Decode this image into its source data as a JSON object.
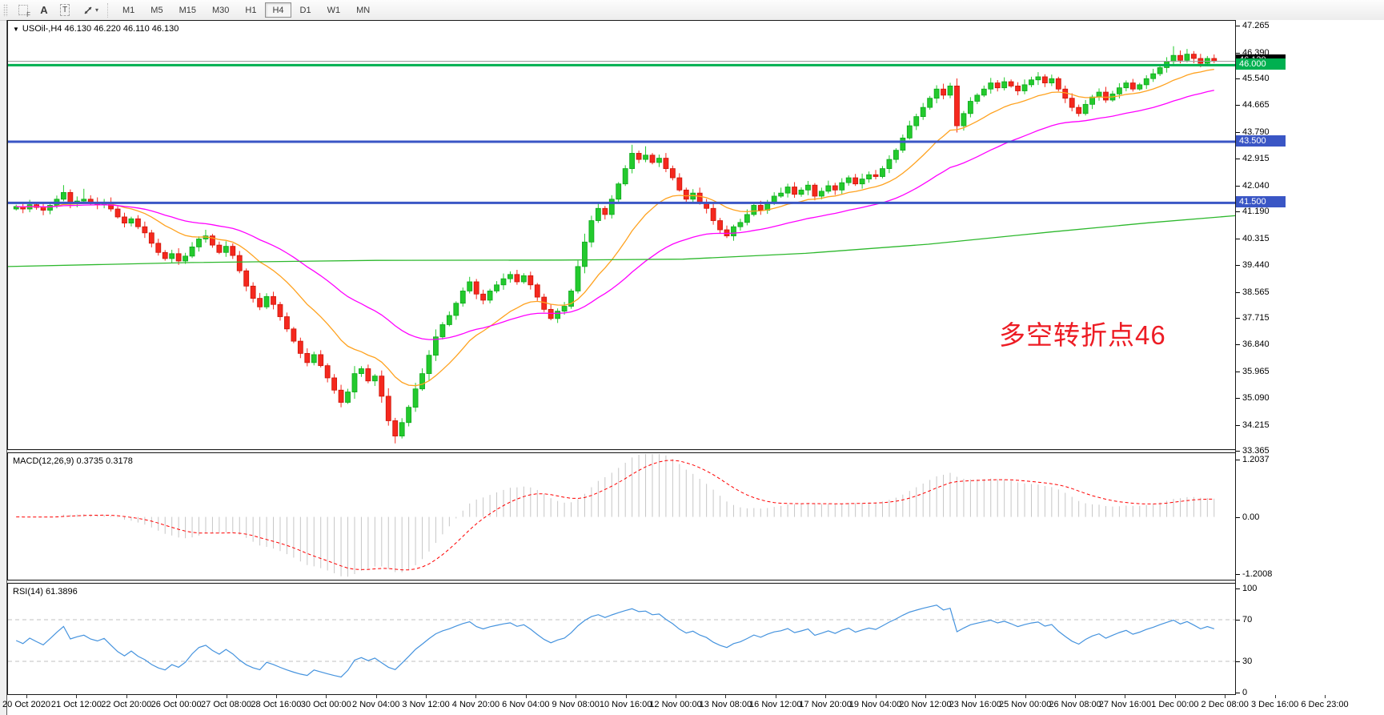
{
  "toolbar": {
    "tools": [
      {
        "id": "templates",
        "glyph": "F"
      },
      {
        "id": "label-tool",
        "glyph": "A"
      },
      {
        "id": "text-tool",
        "glyph": "T"
      },
      {
        "id": "draw-tools",
        "glyph": "arrows"
      }
    ],
    "timeframes": [
      "M1",
      "M5",
      "M15",
      "M30",
      "H1",
      "H4",
      "D1",
      "W1",
      "MN"
    ],
    "active_timeframe": "H4"
  },
  "chart": {
    "title_display": "USOil-,H4 46.130 46.220 46.110 46.130",
    "symbol": "USOil-",
    "timeframe": "H4",
    "ohlc": {
      "open": "46.130",
      "high": "46.220",
      "low": "46.110",
      "close": "46.130"
    },
    "annotation": {
      "text": "多空转折点46",
      "color": "#ed1c24"
    }
  },
  "chart_data": [
    {
      "type": "candlestick",
      "title": "USOil- H4",
      "first_open": 41.3,
      "closes": [
        41.38,
        41.3,
        41.44,
        41.35,
        41.26,
        41.42,
        41.62,
        41.84,
        41.48,
        41.56,
        41.62,
        41.5,
        41.44,
        41.52,
        41.3,
        41.04,
        40.84,
        40.98,
        40.72,
        40.52,
        40.18,
        39.88,
        39.68,
        39.84,
        39.6,
        39.76,
        40.06,
        40.32,
        40.42,
        40.12,
        39.88,
        40.08,
        39.78,
        39.28,
        38.78,
        38.38,
        38.1,
        38.44,
        38.18,
        37.78,
        37.38,
        36.98,
        36.58,
        36.28,
        36.54,
        36.18,
        35.78,
        35.38,
        34.98,
        35.32,
        35.92,
        36.08,
        35.68,
        35.84,
        35.18,
        34.38,
        33.88,
        34.32,
        34.82,
        35.42,
        35.92,
        36.52,
        37.12,
        37.52,
        37.82,
        38.22,
        38.62,
        38.92,
        38.52,
        38.32,
        38.62,
        38.82,
        39.02,
        39.16,
        38.92,
        39.12,
        38.82,
        38.42,
        38.02,
        37.72,
        37.96,
        38.12,
        38.62,
        39.42,
        40.22,
        40.92,
        41.32,
        41.12,
        41.62,
        42.12,
        42.62,
        43.12,
        42.92,
        43.06,
        42.82,
        42.96,
        42.62,
        42.32,
        41.92,
        41.62,
        41.82,
        41.52,
        41.32,
        40.92,
        40.62,
        40.42,
        40.72,
        40.86,
        41.12,
        41.42,
        41.26,
        41.52,
        41.72,
        41.82,
        42.02,
        41.78,
        41.92,
        42.08,
        41.72,
        41.88,
        42.06,
        41.92,
        42.16,
        42.32,
        42.12,
        42.28,
        42.42,
        42.36,
        42.62,
        42.92,
        43.22,
        43.62,
        44.02,
        44.32,
        44.62,
        44.92,
        45.22,
        45.02,
        45.32,
        44.02,
        44.42,
        44.82,
        45.02,
        45.22,
        45.42,
        45.26,
        45.46,
        45.32,
        45.16,
        45.36,
        45.52,
        45.62,
        45.42,
        45.56,
        45.22,
        44.92,
        44.62,
        44.42,
        44.72,
        44.96,
        45.12,
        44.86,
        45.06,
        45.26,
        45.42,
        45.22,
        45.36,
        45.56,
        45.72,
        45.92,
        46.12,
        46.32,
        46.16,
        46.36,
        46.22,
        46.06,
        46.22,
        46.13
      ],
      "spikes": {
        "7": {
          "h": 42.08
        },
        "10": {
          "h": 41.96
        },
        "28": {
          "h": 40.62
        },
        "48": {
          "l": 34.82
        },
        "56": {
          "l": 33.64
        },
        "57": {
          "l": 33.8
        },
        "91": {
          "h": 43.4
        },
        "93": {
          "h": 43.35
        },
        "139": {
          "l": 43.8
        },
        "171": {
          "h": 46.62
        },
        "172": {
          "h": 46.48
        }
      },
      "colors": {
        "bull": "#23ca2d",
        "bull_edge": "#0ea81c",
        "bear": "#f5281e",
        "bear_edge": "#cd1508"
      },
      "current_price": 46.13,
      "current_price_label": "46.130",
      "current_line_color": "#9c9c9c",
      "hlines": [
        {
          "price": 46.0,
          "label": "46.000",
          "color": "#00b050",
          "width": 3
        },
        {
          "price": 43.5,
          "label": "43.500",
          "color": "#3a56c5",
          "width": 3
        },
        {
          "price": 41.5,
          "label": "41.500",
          "color": "#3a56c5",
          "width": 3
        }
      ],
      "moving_averages": [
        {
          "name": "fast-ma",
          "color": "#ffa21f",
          "period": 16
        },
        {
          "name": "medium-ma",
          "color": "#ff00ff",
          "period": 40
        },
        {
          "name": "slow-ma",
          "color": "#2db82d",
          "points": [
            [
              0,
              39.42
            ],
            [
              0.15,
              39.55
            ],
            [
              0.3,
              39.62
            ],
            [
              0.45,
              39.63
            ],
            [
              0.55,
              39.66
            ],
            [
              0.65,
              39.85
            ],
            [
              0.75,
              40.15
            ],
            [
              0.85,
              40.55
            ],
            [
              0.93,
              40.85
            ],
            [
              1,
              41.08
            ]
          ]
        }
      ],
      "ylim": [
        33.45,
        47.45
      ],
      "y_ticks": [
        "47.265",
        "46.390",
        "45.540",
        "44.665",
        "43.790",
        "42.915",
        "42.040",
        "41.190",
        "40.315",
        "39.440",
        "38.565",
        "37.715",
        "36.840",
        "35.965",
        "35.090",
        "34.215",
        "33.365"
      ],
      "x_labels": [
        "20 Oct 2020",
        "21 Oct 12:00",
        "22 Oct 20:00",
        "26 Oct 00:00",
        "27 Oct 08:00",
        "28 Oct 16:00",
        "30 Oct 00:00",
        "2 Nov 04:00",
        "3 Nov 12:00",
        "4 Nov 20:00",
        "6 Nov 04:00",
        "9 Nov 08:00",
        "10 Nov 16:00",
        "12 Nov 00:00",
        "13 Nov 08:00",
        "16 Nov 12:00",
        "17 Nov 20:00",
        "19 Nov 04:00",
        "20 Nov 12:00",
        "23 Nov 16:00",
        "25 Nov 00:00",
        "26 Nov 08:00",
        "27 Nov 16:00",
        "1 Dec 00:00",
        "2 Dec 08:00",
        "3 Dec 16:00",
        "6 Dec 23:00"
      ]
    },
    {
      "type": "macd",
      "display": "MACD(12,26,9) 0.3735 0.3178",
      "params": [
        12,
        26,
        9
      ],
      "values": [
        "0.3735",
        "0.3178"
      ],
      "histogram_color": "#c6c6c6",
      "signal_color": "#ff0000",
      "ylim": [
        -1.32,
        1.34
      ],
      "y_ticks": [
        "1.2037",
        "0.00",
        "-1.2008"
      ]
    },
    {
      "type": "rsi",
      "display": "RSI(14) 61.3896",
      "period": 14,
      "value": "61.3896",
      "line_color": "#4593de",
      "levels": [
        70,
        30
      ],
      "level_color": "#c0c0c0",
      "ylim": [
        -1.5,
        104.6
      ],
      "y_ticks": [
        "100",
        "70",
        "30",
        "0"
      ]
    }
  ]
}
